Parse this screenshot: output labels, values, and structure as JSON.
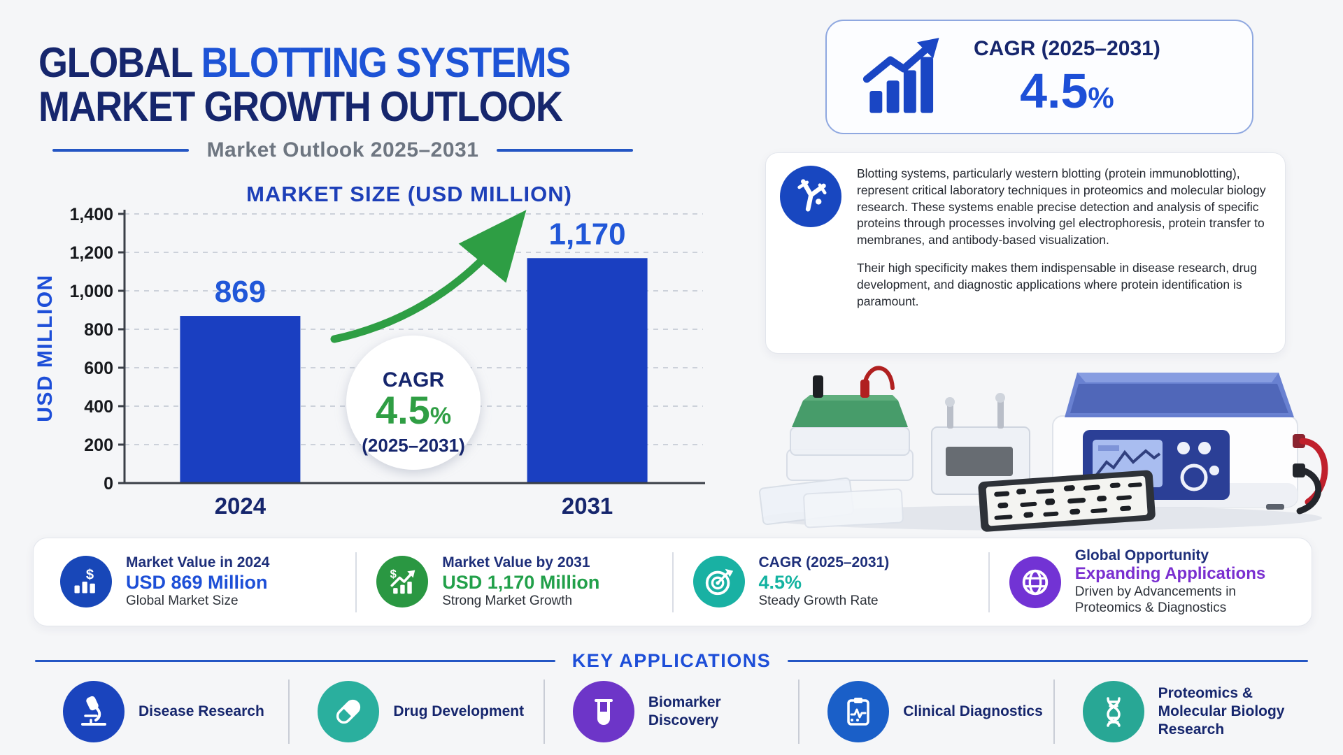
{
  "header": {
    "title_part1": "GLOBAL",
    "title_part2": "BLOTTING SYSTEMS",
    "title_line2": "MARKET GROWTH OUTLOOK",
    "subtitle": "Market Outlook 2025–2031",
    "colors": {
      "dark": "#16266d",
      "accent": "#1d53d6",
      "subtitle_gray": "#6e7681"
    }
  },
  "cagr_box": {
    "label": "CAGR (2025–2031)",
    "value": "4.5",
    "unit": "%",
    "icon": "bar-chart-rising-arrow-icon",
    "colors": {
      "border": "#8fa8e0",
      "value": "#1d4fd7",
      "label": "#16266d",
      "icon": "#1a46c4"
    }
  },
  "about": {
    "icon": "antibody-icon",
    "icon_bg": "#1847c0",
    "paragraph1": "Blotting systems, particularly western blotting (protein immunoblotting), represent critical laboratory techniques in proteomics and molecular biology research. These systems enable precise detection and analysis of specific proteins through processes involving gel electrophoresis, protein transfer to membranes, and antibody-based visualization.",
    "paragraph2": "Their high specificity makes them indispensable in disease research, drug development, and diagnostic applications where protein identification is paramount."
  },
  "chart_data": {
    "type": "bar",
    "title": "MARKET SIZE (USD MILLION)",
    "ylabel": "USD MILLION",
    "categories": [
      "2024",
      "2031"
    ],
    "values": [
      869,
      1170
    ],
    "ylim": [
      0,
      1400
    ],
    "ytick_step": 200,
    "grid": "horizontal dashed",
    "legend": "none",
    "bar_color": "#1a3fc1",
    "value_label_color": "#2157d8",
    "category_label_color": "#16266d",
    "tick_label_color": "#17191d",
    "title_color": "#1d3fb8",
    "trend_arrow_color": "#2e9e44",
    "annotation": {
      "title": "CAGR",
      "value": "4.5",
      "unit": "%",
      "period": "(2025–2031)",
      "title_color": "#16266d",
      "value_color": "#2f9e44"
    }
  },
  "equipment_image": {
    "description": "Western blotting system: gel electrophoresis tanks, transfer cassette, blot membrane with protein bands, and control unit with blue lid and cables"
  },
  "stats": {
    "items": [
      {
        "icon": "dollar-bars-icon",
        "icon_bg": "#1847b8",
        "title": "Market Value in 2024",
        "value": "USD 869 Million",
        "value_color": "#1d4fd7",
        "sub": "Global Market Size"
      },
      {
        "icon": "dollar-growth-icon",
        "icon_bg": "#2a9742",
        "title": "Market Value by 2031",
        "value": "USD 1,170 Million",
        "value_color": "#22a04a",
        "sub": "Strong Market Growth"
      },
      {
        "icon": "target-dart-icon",
        "icon_bg": "#19b1a3",
        "title": "CAGR (2025–2031)",
        "value": "4.5%",
        "value_color": "#14b3a1",
        "sub": "Steady Growth Rate"
      },
      {
        "icon": "globe-icon",
        "icon_bg": "#7233d4",
        "title": "Global Opportunity",
        "value": "Expanding Applications",
        "value_color": "#7a2fd0",
        "sub": "Driven by Advancements in Proteomics & Diagnostics"
      }
    ]
  },
  "applications": {
    "heading": "KEY APPLICATIONS",
    "items": [
      {
        "icon": "microscope-icon",
        "icon_bg": "#1a44bd",
        "label": "Disease Research"
      },
      {
        "icon": "capsule-icon",
        "icon_bg": "#2aaf9e",
        "label": "Drug Development"
      },
      {
        "icon": "test-tube-icon",
        "icon_bg": "#6d35c8",
        "label": "Biomarker Discovery"
      },
      {
        "icon": "clipboard-pulse-icon",
        "icon_bg": "#1a5fc8",
        "label": "Clinical Diagnostics"
      },
      {
        "icon": "dna-helix-icon",
        "icon_bg": "#28a795",
        "label": "Proteomics & Molecular Biology Research"
      }
    ]
  }
}
